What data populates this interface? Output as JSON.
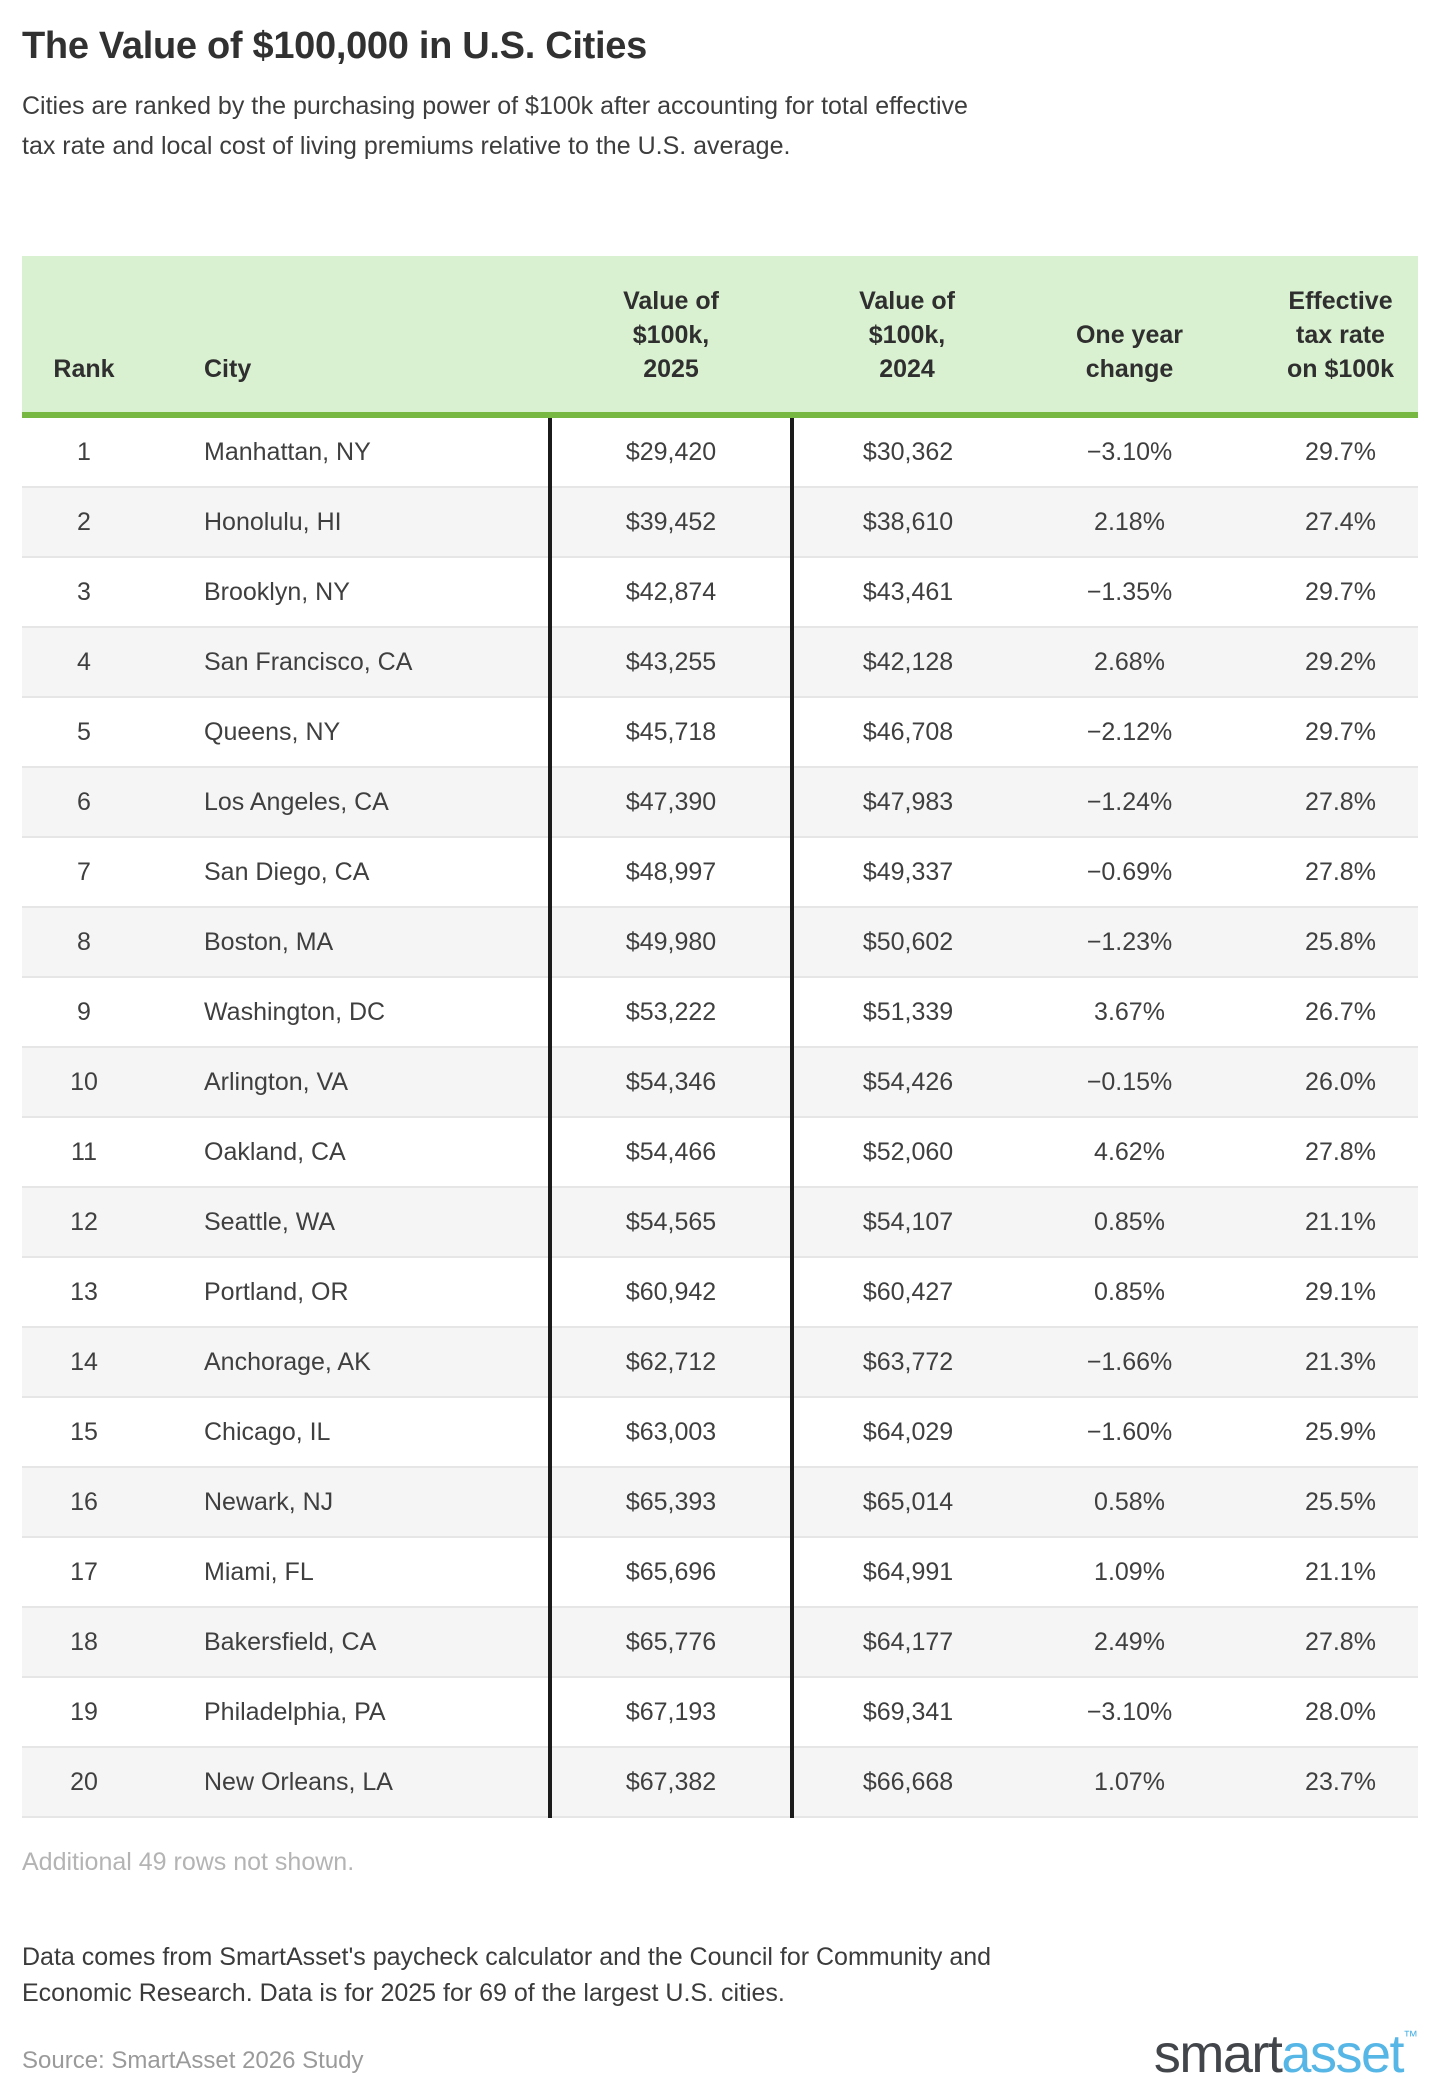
{
  "title": "The Value of $100,000 in U.S. Cities",
  "subtitle": {
    "line1": "Cities are ranked by the purchasing power of $100k after accounting for total effective",
    "line2": "tax rate and local cost of living premiums relative to the U.S. average."
  },
  "chart_data": {
    "type": "table",
    "title": "The Value of $100,000 in U.S. Cities",
    "headers": [
      "Rank",
      "City",
      "Value of\n$100k,\n2025",
      "Value of\n$100k,\n2024",
      "One year\nchange",
      "Effective\ntax rate\non $100k"
    ],
    "rows": [
      [
        "1",
        "Manhattan, NY",
        "$29,420",
        "$30,362",
        "−3.10%",
        "29.7%"
      ],
      [
        "2",
        "Honolulu, HI",
        "$39,452",
        "$38,610",
        "2.18%",
        "27.4%"
      ],
      [
        "3",
        "Brooklyn, NY",
        "$42,874",
        "$43,461",
        "−1.35%",
        "29.7%"
      ],
      [
        "4",
        "San Francisco, CA",
        "$43,255",
        "$42,128",
        "2.68%",
        "29.2%"
      ],
      [
        "5",
        "Queens, NY",
        "$45,718",
        "$46,708",
        "−2.12%",
        "29.7%"
      ],
      [
        "6",
        "Los Angeles, CA",
        "$47,390",
        "$47,983",
        "−1.24%",
        "27.8%"
      ],
      [
        "7",
        "San Diego, CA",
        "$48,997",
        "$49,337",
        "−0.69%",
        "27.8%"
      ],
      [
        "8",
        "Boston, MA",
        "$49,980",
        "$50,602",
        "−1.23%",
        "25.8%"
      ],
      [
        "9",
        "Washington, DC",
        "$53,222",
        "$51,339",
        "3.67%",
        "26.7%"
      ],
      [
        "10",
        "Arlington, VA",
        "$54,346",
        "$54,426",
        "−0.15%",
        "26.0%"
      ],
      [
        "11",
        "Oakland, CA",
        "$54,466",
        "$52,060",
        "4.62%",
        "27.8%"
      ],
      [
        "12",
        "Seattle, WA",
        "$54,565",
        "$54,107",
        "0.85%",
        "21.1%"
      ],
      [
        "13",
        "Portland, OR",
        "$60,942",
        "$60,427",
        "0.85%",
        "29.1%"
      ],
      [
        "14",
        "Anchorage, AK",
        "$62,712",
        "$63,772",
        "−1.66%",
        "21.3%"
      ],
      [
        "15",
        "Chicago, IL",
        "$63,003",
        "$64,029",
        "−1.60%",
        "25.9%"
      ],
      [
        "16",
        "Newark, NJ",
        "$65,393",
        "$65,014",
        "0.58%",
        "25.5%"
      ],
      [
        "17",
        "Miami, FL",
        "$65,696",
        "$64,991",
        "1.09%",
        "21.1%"
      ],
      [
        "18",
        "Bakersfield, CA",
        "$65,776",
        "$64,177",
        "2.49%",
        "27.8%"
      ],
      [
        "19",
        "Philadelphia, PA",
        "$67,193",
        "$69,341",
        "−3.10%",
        "28.0%"
      ],
      [
        "20",
        "New Orleans, LA",
        "$67,382",
        "$66,668",
        "1.07%",
        "23.7%"
      ]
    ],
    "note": "Additional 49 rows not shown."
  },
  "rows_note": "Additional 49 rows not shown.",
  "footnote": {
    "line1": "Data comes from SmartAsset's paycheck calculator and the Council for Community and",
    "line2": "Economic Research. Data is for 2025 for 69 of the largest U.S. cities."
  },
  "source": "Source: SmartAsset 2026 Study",
  "logo": {
    "smart": "smart",
    "asset": "asset",
    "tm": "™"
  },
  "colors": {
    "header_bg": "#d9f1d0",
    "header_rule": "#77b843",
    "column_divider": "#1b1b1b",
    "row_alt_bg": "#f5f5f5",
    "row_separator": "#e6e6e6",
    "muted_note_text": "#b4b4b4",
    "source_text": "#9a9a9a",
    "logo_dark": "#42464b",
    "logo_blue": "#56b6e6"
  }
}
